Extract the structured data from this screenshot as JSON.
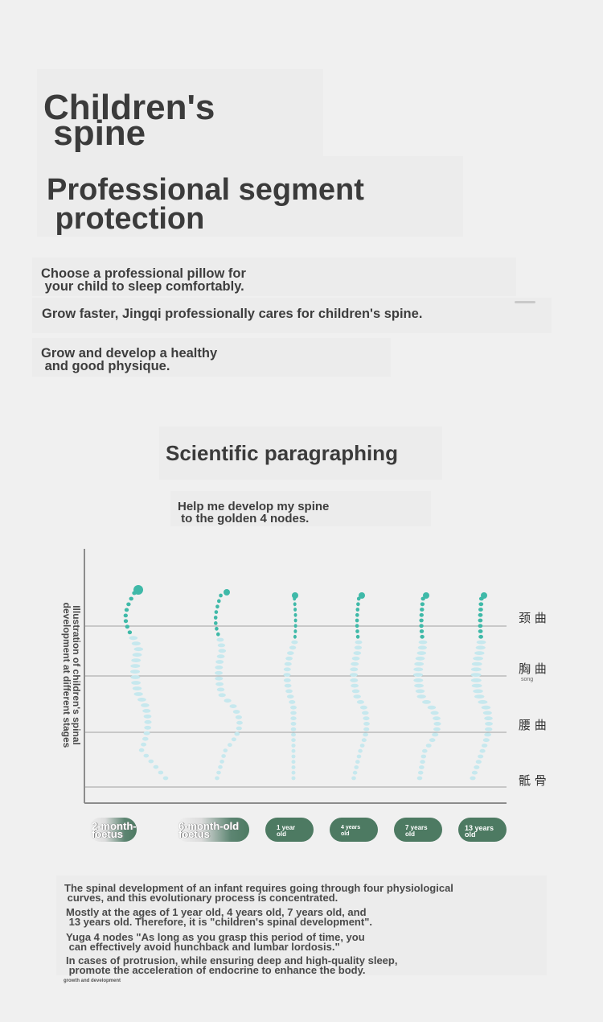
{
  "header": {
    "title_line1": "Children's\n spine",
    "title_line2": "Professional segment\n protection"
  },
  "intro": {
    "line1": "Choose a professional pillow for\n your child to sleep comfortably.",
    "line2": "Grow faster, Jingqi professionally cares for children's spine.",
    "line3": "Grow and develop a healthy\n and good physique."
  },
  "section": {
    "title": "Scientific paragraphing",
    "subtitle": "Help me develop my spine\n to the golden 4 nodes."
  },
  "chart": {
    "y_caption": "Illustration of children's spinal\ndevelopment at different stages",
    "curve_labels": [
      "颈\n曲",
      "胸\n曲",
      "腰\n曲",
      "骶\n骨"
    ],
    "curve_note": "song",
    "stages": [
      "2-month-old\nfoetus",
      "6-month-old\nfoetus",
      "1 year\nold",
      "4 years\nold",
      "7 years\nold",
      "13 years\nold"
    ],
    "colors": {
      "neck": "#3fb9a8",
      "spine": "#c6e8ee",
      "pill": "#4d7a62",
      "grid": "#9a9a9a",
      "axis": "#8c8c8c"
    }
  },
  "body": {
    "p1": "The spinal development of an infant requires going through four physiological\n curves, and this evolutionary process is concentrated.",
    "p2": "Mostly at the ages of 1 year old, 4 years old, 7 years old, and\n 13 years old. Therefore, it is \"children's spinal development\".",
    "p3": "Yuga 4 nodes \"As long as you grasp this period of time, you\n can effectively avoid hunchback and lumbar lordosis.\"",
    "p4": "In cases of protrusion, while ensuring deep and high-quality sleep,\n promote the acceleration of endocrine to enhance the body.",
    "footnote": "growth and development"
  }
}
